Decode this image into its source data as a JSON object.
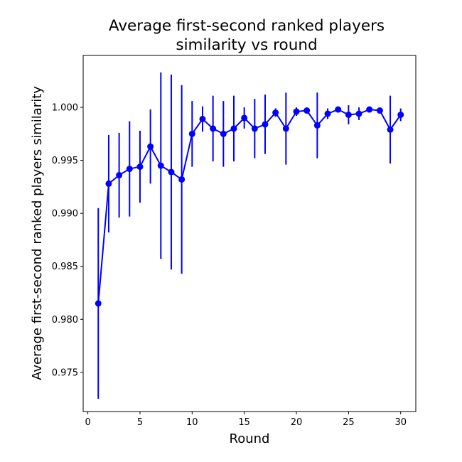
{
  "chart_data": {
    "type": "line",
    "title_lines": [
      "Average first-second ranked players",
      "similarity vs round"
    ],
    "xlabel": "Round",
    "ylabel": "Average first-second ranked players similarity",
    "xlim": [
      -0.45,
      31.45
    ],
    "ylim": [
      0.9713,
      1.0049
    ],
    "xticks": [
      0,
      5,
      10,
      15,
      20,
      25,
      30
    ],
    "xtick_labels": [
      "0",
      "5",
      "10",
      "15",
      "20",
      "25",
      "30"
    ],
    "yticks": [
      0.975,
      0.98,
      0.985,
      0.99,
      0.995,
      1.0
    ],
    "ytick_labels": [
      "0.975",
      "0.980",
      "0.985",
      "0.990",
      "0.995",
      "1.000"
    ],
    "grid": false,
    "legend": "none",
    "colors": {
      "series": "#0000ff",
      "axes": "#000000"
    },
    "series": [
      {
        "x": [
          1,
          2,
          3,
          4,
          5,
          6,
          7,
          8,
          9,
          10,
          11,
          12,
          13,
          14,
          15,
          16,
          17,
          18,
          19,
          20,
          21,
          22,
          23,
          24,
          25,
          26,
          27,
          28,
          29,
          30
        ],
        "y": [
          0.9815,
          0.9928,
          0.9936,
          0.9942,
          0.9944,
          0.9963,
          0.9945,
          0.9939,
          0.9932,
          0.9975,
          0.9989,
          0.998,
          0.9975,
          0.998,
          0.999,
          0.998,
          0.9984,
          0.9995,
          0.998,
          0.9996,
          0.9997,
          0.9983,
          0.9994,
          0.9998,
          0.9993,
          0.9994,
          0.9998,
          0.9997,
          0.9979,
          0.9993
        ],
        "error": [
          0.009,
          0.0046,
          0.004,
          0.0045,
          0.0034,
          0.0035,
          0.0088,
          0.0092,
          0.0089,
          0.0031,
          0.0012,
          0.0031,
          0.0031,
          0.0031,
          0.001,
          0.0028,
          0.0028,
          0.0004,
          0.0034,
          0.0004,
          0.0002,
          0.0031,
          0.0005,
          0.0001,
          0.0009,
          0.0006,
          0.0001,
          0.0002,
          0.0032,
          0.0006
        ]
      }
    ]
  }
}
